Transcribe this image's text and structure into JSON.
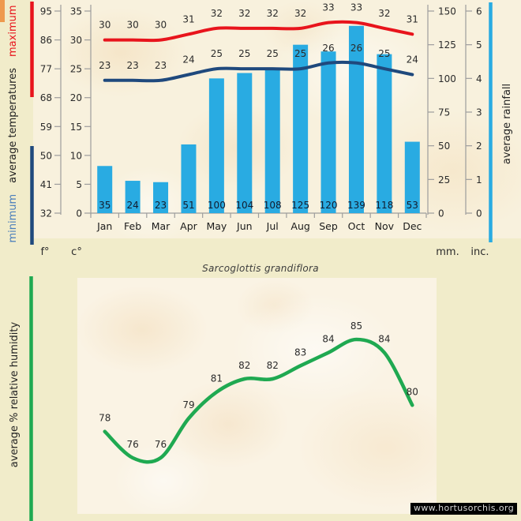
{
  "page": {
    "plant_name": "Sarcoglottis grandiflora",
    "website": "www.hortusorchis.org",
    "colors": {
      "background": "#f1ecca",
      "panel": "#f8f1dd",
      "humidity_panel": "#faf3e4",
      "max_line": "#e8141c",
      "min_line": "#1f497d",
      "min_text": "#4a7ebb",
      "bar": "#29abe2",
      "humidity_line": "#1fa951",
      "axis": "#9d9d9d",
      "text": "#2b2b2b",
      "bar_label": "#121c2e",
      "corner_mark": "#ee9a4e"
    }
  },
  "chart_data": [
    {
      "type": "bar+line",
      "categories": [
        "Jan",
        "Feb",
        "Mar",
        "Apr",
        "May",
        "Jun",
        "Jul",
        "Aug",
        "Sep",
        "Oct",
        "Nov",
        "Dec"
      ],
      "series": [
        {
          "name": "maximum temperature (c°)",
          "type": "line",
          "color": "#e8141c",
          "values": [
            30,
            30,
            30,
            31,
            32,
            32,
            32,
            32,
            33,
            33,
            32,
            31
          ]
        },
        {
          "name": "minimum temperature (c°)",
          "type": "line",
          "color": "#1f497d",
          "values": [
            23,
            23,
            23,
            24,
            25,
            25,
            25,
            25,
            26,
            26,
            25,
            24
          ]
        },
        {
          "name": "average rainfall (mm)",
          "type": "bar",
          "color": "#29abe2",
          "values": [
            35,
            24,
            23,
            51,
            100,
            104,
            108,
            125,
            120,
            139,
            118,
            53
          ]
        }
      ],
      "axes": {
        "fahrenheit": {
          "unit": "f°",
          "ticks": [
            "95",
            "86",
            "77",
            "68",
            "59",
            "50",
            "41",
            "32"
          ]
        },
        "celsius": {
          "unit": "c°",
          "ticks": [
            "35",
            "30",
            "25",
            "20",
            "15",
            "10",
            "5",
            "0"
          ],
          "range": [
            0,
            35
          ]
        },
        "millimeters": {
          "unit": "mm.",
          "ticks": [
            "150",
            "125",
            "100",
            "75",
            "50",
            "25",
            "0"
          ],
          "range": [
            0,
            150
          ]
        },
        "inches": {
          "unit": "inc.",
          "ticks": [
            "6",
            "5",
            "4",
            "3",
            "2",
            "1",
            "0"
          ]
        }
      },
      "left_axis_title": {
        "parts": [
          {
            "text": "minimum",
            "color": "#4a7ebb"
          },
          {
            "text": "average  temperatures",
            "color": "#222222"
          },
          {
            "text": "maximum",
            "color": "#e8141c"
          }
        ]
      },
      "right_axis_title": "average rainfall",
      "grid": false,
      "legend": "none"
    },
    {
      "type": "line",
      "categories": [
        "Jan",
        "Feb",
        "Mar",
        "Apr",
        "May",
        "Jun",
        "Jul",
        "Aug",
        "Sep",
        "Oct",
        "Nov",
        "Dec"
      ],
      "values": [
        78,
        76,
        76,
        79,
        81,
        82,
        82,
        83,
        84,
        85,
        84,
        80
      ],
      "color": "#1fa951",
      "ylabel": "average %  relative humidity",
      "xlabel": "",
      "grid": false
    }
  ]
}
